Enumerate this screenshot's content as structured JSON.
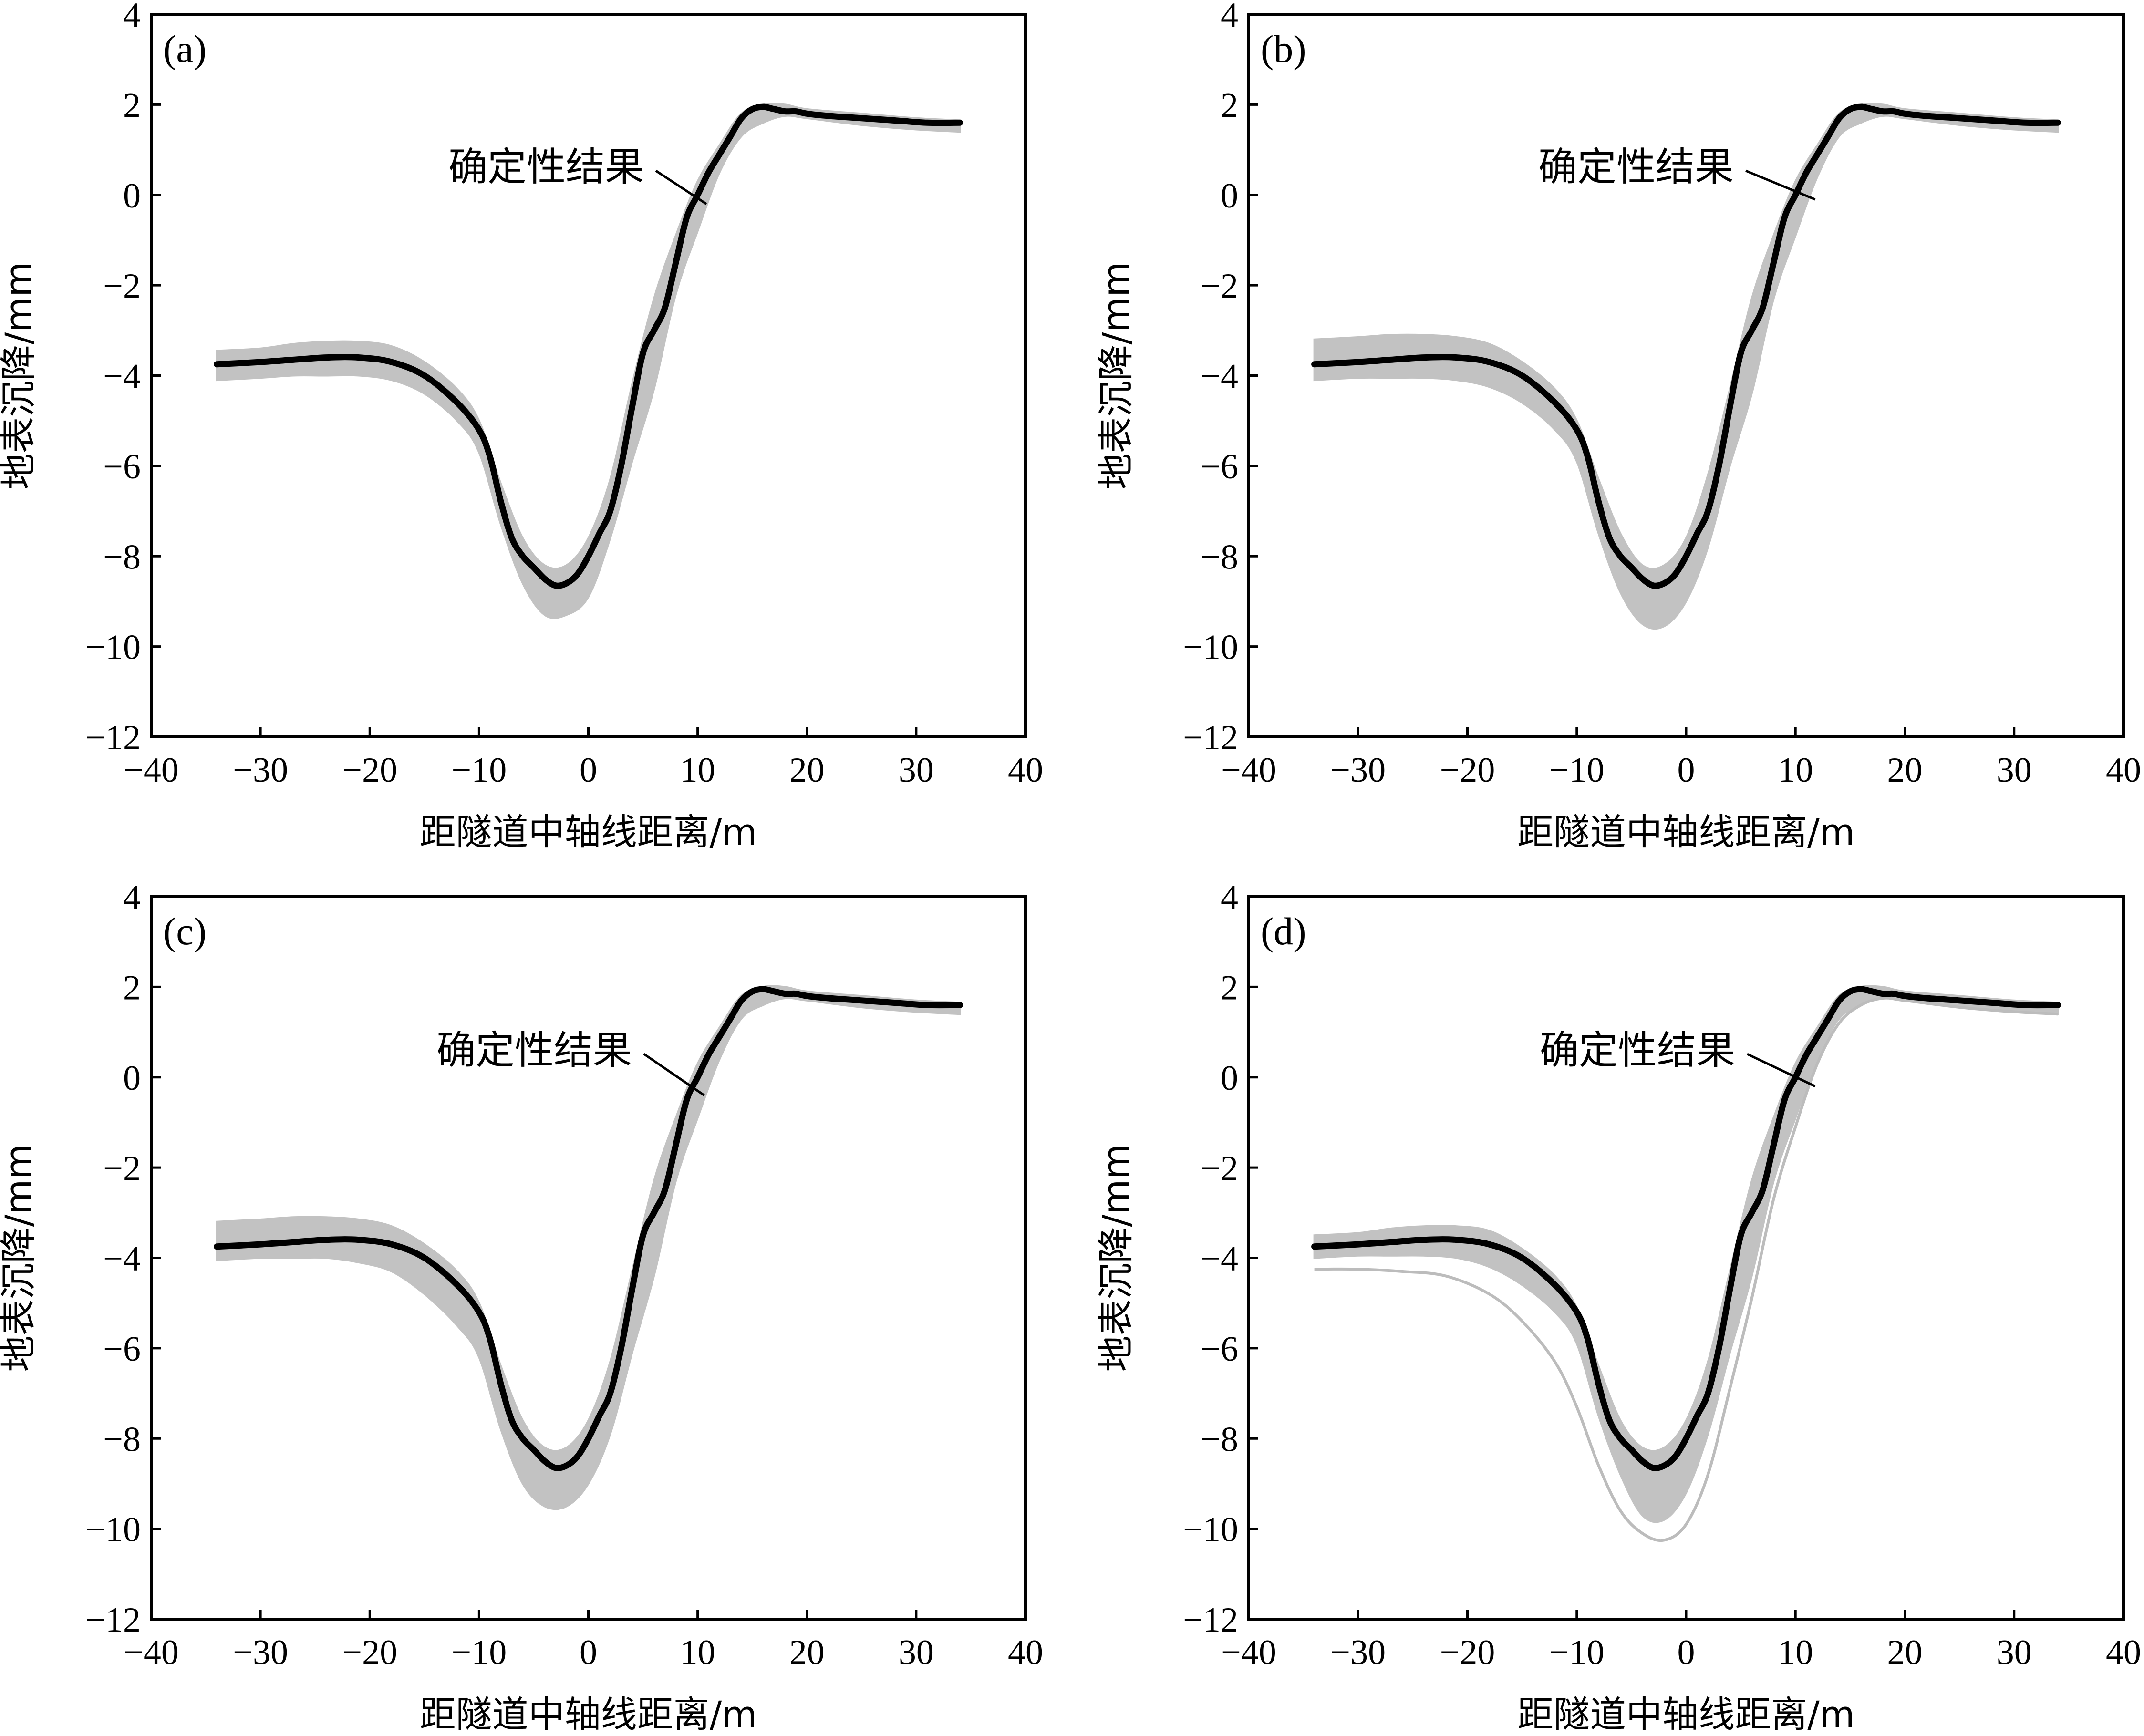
{
  "colors": {
    "deterministic": "#000000",
    "uncertainty_band": "#c2c2c2"
  },
  "chart_data": [
    {
      "type": "line",
      "panel_label": "(a)",
      "xlabel": "距隧道中轴线距离/m",
      "ylabel": "地表沉降/mm",
      "xlim": [
        -40,
        40
      ],
      "ylim": [
        -12,
        4
      ],
      "xticks": [
        -40,
        -30,
        -20,
        -10,
        0,
        10,
        20,
        30,
        40
      ],
      "yticks": [
        4,
        2,
        0,
        -2,
        -4,
        -6,
        -8,
        -10,
        -12
      ],
      "annotation": "确定性结果",
      "series": [
        {
          "x": [
            -34,
            -30,
            -27,
            -24,
            -21,
            -18,
            -15,
            -12,
            -10,
            -9,
            -8,
            -7,
            -6,
            -5,
            -4,
            -3,
            -2,
            -1,
            0,
            1,
            2,
            3,
            4,
            5,
            6,
            7,
            8,
            9,
            10,
            11,
            12,
            13,
            14,
            15,
            16,
            17,
            18,
            19,
            20,
            22,
            25,
            28,
            31,
            34
          ],
          "y": [
            -3.75,
            -3.7,
            -3.65,
            -3.6,
            -3.6,
            -3.7,
            -4.0,
            -4.6,
            -5.2,
            -5.8,
            -6.8,
            -7.6,
            -8.0,
            -8.25,
            -8.5,
            -8.65,
            -8.6,
            -8.4,
            -8.0,
            -7.5,
            -7.0,
            -6.0,
            -4.7,
            -3.5,
            -3.0,
            -2.5,
            -1.5,
            -0.5,
            0.0,
            0.5,
            0.9,
            1.3,
            1.7,
            1.9,
            1.95,
            1.9,
            1.85,
            1.85,
            1.8,
            1.75,
            1.7,
            1.65,
            1.6,
            1.6
          ]
        },
        {
          "x": [
            -34,
            -30,
            -27,
            -24,
            -21,
            -18,
            -15,
            -12,
            -10,
            -8,
            -6,
            -4,
            -2,
            0,
            2,
            4,
            6,
            8,
            10,
            12,
            14,
            16,
            18,
            20,
            25,
            30,
            34
          ],
          "y_upper": [
            -3.45,
            -3.4,
            -3.3,
            -3.25,
            -3.25,
            -3.35,
            -3.7,
            -4.3,
            -5.0,
            -6.4,
            -7.6,
            -8.2,
            -8.2,
            -7.6,
            -6.3,
            -4.2,
            -2.3,
            -0.9,
            0.3,
            1.1,
            1.8,
            2.0,
            2.0,
            1.9,
            1.8,
            1.7,
            1.65
          ],
          "y_lower": [
            -4.1,
            -4.05,
            -4.0,
            -4.0,
            -4.0,
            -4.1,
            -4.4,
            -5.0,
            -5.7,
            -7.3,
            -8.6,
            -9.3,
            -9.3,
            -8.9,
            -7.6,
            -5.9,
            -4.3,
            -2.2,
            -0.8,
            0.5,
            1.3,
            1.6,
            1.75,
            1.7,
            1.55,
            1.45,
            1.4
          ]
        }
      ]
    },
    {
      "type": "line",
      "panel_label": "(b)",
      "xlabel": "距隧道中轴线距离/m",
      "ylabel": "地表沉降/mm",
      "xlim": [
        -40,
        40
      ],
      "ylim": [
        -12,
        4
      ],
      "xticks": [
        -40,
        -30,
        -20,
        -10,
        0,
        10,
        20,
        30,
        40
      ],
      "yticks": [
        4,
        2,
        0,
        -2,
        -4,
        -6,
        -8,
        -10,
        -12
      ],
      "annotation": "确定性结果",
      "series": [
        {
          "x": [
            -34,
            -30,
            -27,
            -24,
            -21,
            -18,
            -15,
            -12,
            -10,
            -9,
            -8,
            -7,
            -6,
            -5,
            -4,
            -3,
            -2,
            -1,
            0,
            1,
            2,
            3,
            4,
            5,
            6,
            7,
            8,
            9,
            10,
            11,
            12,
            13,
            14,
            15,
            16,
            17,
            18,
            19,
            20,
            22,
            25,
            28,
            31,
            34
          ],
          "y": [
            -3.75,
            -3.7,
            -3.65,
            -3.6,
            -3.6,
            -3.7,
            -4.0,
            -4.6,
            -5.2,
            -5.8,
            -6.8,
            -7.6,
            -8.0,
            -8.25,
            -8.5,
            -8.65,
            -8.6,
            -8.4,
            -8.0,
            -7.5,
            -7.0,
            -6.0,
            -4.7,
            -3.5,
            -3.0,
            -2.5,
            -1.5,
            -0.5,
            0.0,
            0.5,
            0.9,
            1.3,
            1.7,
            1.9,
            1.95,
            1.9,
            1.85,
            1.85,
            1.8,
            1.75,
            1.7,
            1.65,
            1.6,
            1.6
          ]
        },
        {
          "x": [
            -34,
            -30,
            -27,
            -24,
            -21,
            -18,
            -15,
            -12,
            -10,
            -8,
            -6,
            -4,
            -2,
            0,
            2,
            4,
            6,
            8,
            10,
            12,
            14,
            16,
            18,
            20,
            25,
            30,
            34
          ],
          "y_upper": [
            -3.2,
            -3.15,
            -3.1,
            -3.1,
            -3.15,
            -3.3,
            -3.7,
            -4.3,
            -5.0,
            -6.3,
            -7.5,
            -8.2,
            -8.2,
            -7.6,
            -6.2,
            -4.3,
            -2.3,
            -0.9,
            0.3,
            1.1,
            1.8,
            2.0,
            2.0,
            1.9,
            1.8,
            1.7,
            1.65
          ],
          "y_lower": [
            -4.1,
            -4.05,
            -4.05,
            -4.05,
            -4.1,
            -4.25,
            -4.6,
            -5.2,
            -5.9,
            -7.5,
            -8.8,
            -9.5,
            -9.55,
            -9.0,
            -7.8,
            -6.0,
            -4.4,
            -2.3,
            -0.9,
            0.4,
            1.3,
            1.6,
            1.75,
            1.7,
            1.55,
            1.45,
            1.4
          ]
        }
      ]
    },
    {
      "type": "line",
      "panel_label": "(c)",
      "xlabel": "距隧道中轴线距离/m",
      "ylabel": "地表沉降/mm",
      "xlim": [
        -40,
        40
      ],
      "ylim": [
        -12,
        4
      ],
      "xticks": [
        -40,
        -30,
        -20,
        -10,
        0,
        10,
        20,
        30,
        40
      ],
      "yticks": [
        4,
        2,
        0,
        -2,
        -4,
        -6,
        -8,
        -10,
        -12
      ],
      "annotation": "确定性结果",
      "series": [
        {
          "x": [
            -34,
            -30,
            -27,
            -24,
            -21,
            -18,
            -15,
            -12,
            -10,
            -9,
            -8,
            -7,
            -6,
            -5,
            -4,
            -3,
            -2,
            -1,
            0,
            1,
            2,
            3,
            4,
            5,
            6,
            7,
            8,
            9,
            10,
            11,
            12,
            13,
            14,
            15,
            16,
            17,
            18,
            19,
            20,
            22,
            25,
            28,
            31,
            34
          ],
          "y": [
            -3.75,
            -3.7,
            -3.65,
            -3.6,
            -3.6,
            -3.7,
            -4.0,
            -4.6,
            -5.2,
            -5.8,
            -6.8,
            -7.6,
            -8.0,
            -8.25,
            -8.5,
            -8.65,
            -8.6,
            -8.4,
            -8.0,
            -7.5,
            -7.0,
            -6.0,
            -4.7,
            -3.5,
            -3.0,
            -2.5,
            -1.5,
            -0.5,
            0.0,
            0.5,
            0.9,
            1.3,
            1.7,
            1.9,
            1.95,
            1.9,
            1.85,
            1.85,
            1.8,
            1.75,
            1.7,
            1.65,
            1.6,
            1.6
          ]
        },
        {
          "x": [
            -34,
            -30,
            -27,
            -24,
            -21,
            -18,
            -15,
            -12,
            -10,
            -8,
            -6,
            -4,
            -2,
            0,
            2,
            4,
            6,
            8,
            10,
            12,
            14,
            16,
            18,
            20,
            25,
            30,
            34
          ],
          "y_upper": [
            -3.2,
            -3.15,
            -3.1,
            -3.1,
            -3.15,
            -3.3,
            -3.7,
            -4.3,
            -5.0,
            -6.4,
            -7.6,
            -8.2,
            -8.2,
            -7.6,
            -6.3,
            -4.3,
            -2.3,
            -0.9,
            0.3,
            1.1,
            1.8,
            2.0,
            2.0,
            1.9,
            1.8,
            1.7,
            1.65
          ],
          "y_lower": [
            -4.05,
            -4.0,
            -4.0,
            -4.0,
            -4.1,
            -4.3,
            -4.8,
            -5.5,
            -6.2,
            -7.8,
            -9.0,
            -9.5,
            -9.5,
            -9.0,
            -7.9,
            -6.1,
            -4.4,
            -2.3,
            -0.9,
            0.4,
            1.3,
            1.6,
            1.75,
            1.7,
            1.55,
            1.45,
            1.4
          ]
        }
      ]
    },
    {
      "type": "line",
      "panel_label": "(d)",
      "xlabel": "距隧道中轴线距离/m",
      "ylabel": "地表沉降/mm",
      "xlim": [
        -40,
        40
      ],
      "ylim": [
        -12,
        4
      ],
      "xticks": [
        -40,
        -30,
        -20,
        -10,
        0,
        10,
        20,
        30,
        40
      ],
      "yticks": [
        4,
        2,
        0,
        -2,
        -4,
        -6,
        -8,
        -10,
        -12
      ],
      "annotation": "确定性结果",
      "series": [
        {
          "x": [
            -34,
            -30,
            -27,
            -24,
            -21,
            -18,
            -15,
            -12,
            -10,
            -9,
            -8,
            -7,
            -6,
            -5,
            -4,
            -3,
            -2,
            -1,
            0,
            1,
            2,
            3,
            4,
            5,
            6,
            7,
            8,
            9,
            10,
            11,
            12,
            13,
            14,
            15,
            16,
            17,
            18,
            19,
            20,
            22,
            25,
            28,
            31,
            34
          ],
          "y": [
            -3.75,
            -3.7,
            -3.65,
            -3.6,
            -3.6,
            -3.7,
            -4.0,
            -4.6,
            -5.2,
            -5.8,
            -6.8,
            -7.6,
            -8.0,
            -8.25,
            -8.5,
            -8.65,
            -8.6,
            -8.4,
            -8.0,
            -7.5,
            -7.0,
            -6.0,
            -4.7,
            -3.5,
            -3.0,
            -2.5,
            -1.5,
            -0.5,
            0.0,
            0.5,
            0.9,
            1.3,
            1.7,
            1.9,
            1.95,
            1.9,
            1.85,
            1.85,
            1.8,
            1.75,
            1.7,
            1.65,
            1.6,
            1.6
          ]
        },
        {
          "x": [
            -34,
            -30,
            -27,
            -24,
            -21,
            -18,
            -15,
            -12,
            -10,
            -8,
            -6,
            -4,
            -2,
            0,
            2,
            4,
            6,
            8,
            10,
            12,
            14,
            16,
            18,
            20,
            25,
            30,
            34
          ],
          "y_upper": [
            -3.5,
            -3.45,
            -3.35,
            -3.3,
            -3.3,
            -3.4,
            -3.8,
            -4.4,
            -5.1,
            -6.4,
            -7.6,
            -8.2,
            -8.2,
            -7.6,
            -6.3,
            -4.3,
            -2.3,
            -0.9,
            0.3,
            1.1,
            1.8,
            2.0,
            2.0,
            1.9,
            1.8,
            1.7,
            1.65
          ],
          "y_lower": [
            -4.0,
            -3.95,
            -3.95,
            -3.95,
            -4.0,
            -4.2,
            -4.6,
            -5.2,
            -5.9,
            -7.5,
            -8.8,
            -9.7,
            -9.8,
            -9.2,
            -7.9,
            -6.1,
            -4.4,
            -2.3,
            -0.9,
            0.4,
            1.3,
            1.6,
            1.75,
            1.7,
            1.55,
            1.45,
            1.4
          ]
        },
        {
          "x": [
            -34,
            -30,
            -26,
            -22,
            -18,
            -15,
            -12,
            -10,
            -8,
            -6,
            -4,
            -2,
            0,
            2,
            4,
            6,
            8,
            10,
            12,
            14,
            16,
            18,
            20,
            25,
            30,
            34
          ],
          "y": [
            -4.25,
            -4.25,
            -4.3,
            -4.4,
            -4.8,
            -5.4,
            -6.3,
            -7.3,
            -8.6,
            -9.6,
            -10.1,
            -10.25,
            -9.9,
            -8.8,
            -6.9,
            -4.9,
            -2.7,
            -1.1,
            0.3,
            1.2,
            1.6,
            1.75,
            1.7,
            1.55,
            1.45,
            1.4
          ]
        }
      ]
    }
  ]
}
